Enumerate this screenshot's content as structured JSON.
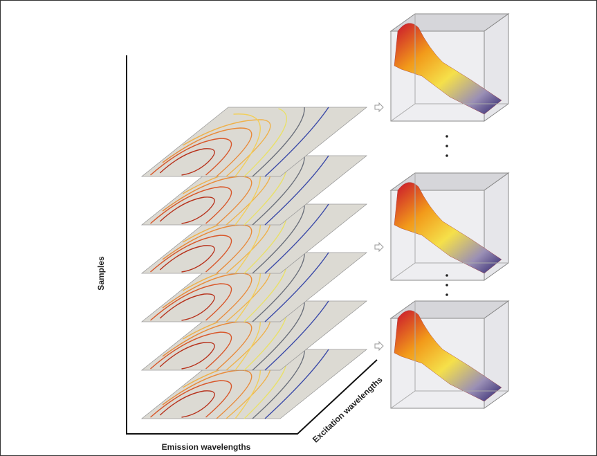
{
  "labels": {
    "y_axis": "Samples",
    "x_axis": "Emission wavelengths",
    "z_axis": "Excitation wavelengths"
  }
}
